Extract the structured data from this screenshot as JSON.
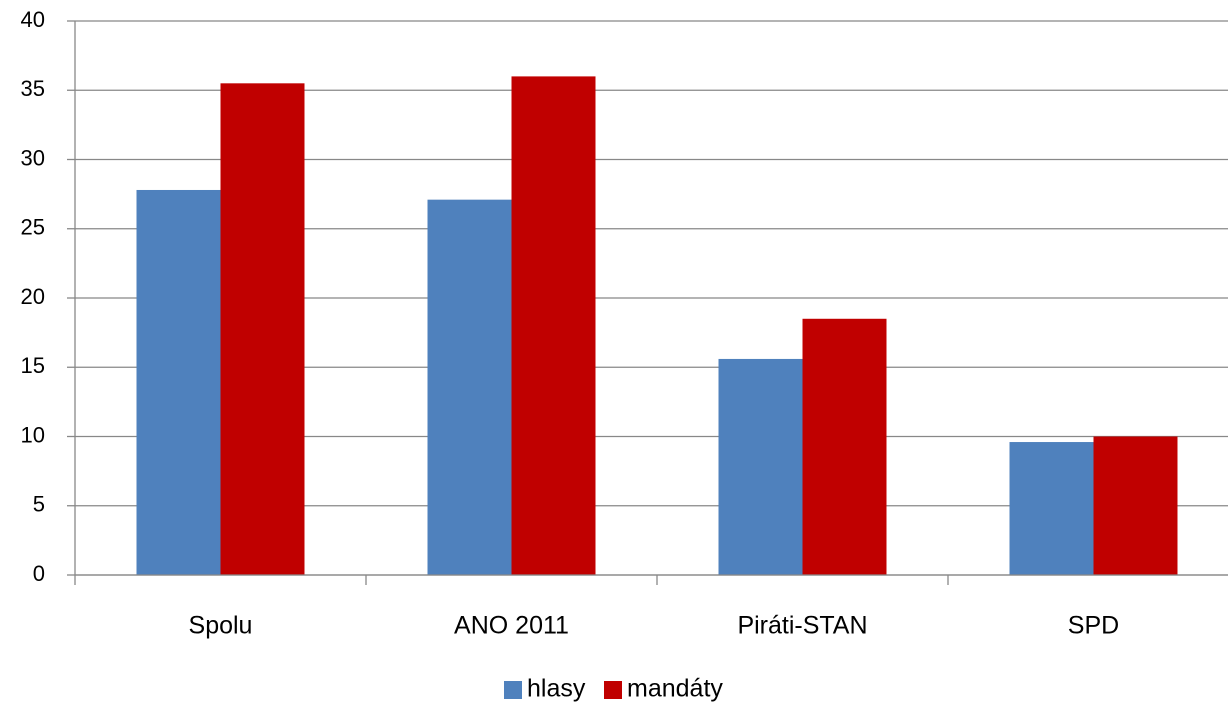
{
  "chart_data": {
    "type": "bar",
    "categories": [
      "Spolu",
      "ANO 2011",
      "Piráti-STAN",
      "SPD"
    ],
    "series": [
      {
        "name": "hlasy",
        "color": "#4f81bd",
        "values": [
          27.8,
          27.1,
          15.6,
          9.6
        ]
      },
      {
        "name": "mandáty",
        "color": "#c00000",
        "values": [
          35.5,
          36,
          18.5,
          10
        ]
      }
    ],
    "ylim": [
      0,
      40
    ],
    "yticks": [
      0,
      5,
      10,
      15,
      20,
      25,
      30,
      35,
      40
    ],
    "grid": true,
    "legend": "bottom"
  }
}
